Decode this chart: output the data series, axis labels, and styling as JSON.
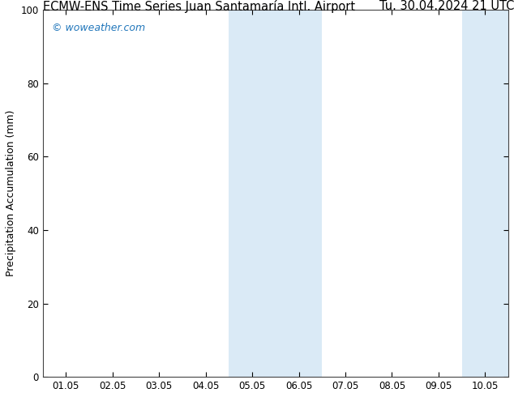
{
  "title_left": "ECMW-ENS Time Series Juan Santamaría Intl. Airport",
  "title_right": "Tu. 30.04.2024 21 UTC",
  "ylabel": "Precipitation Accumulation (mm)",
  "ylim": [
    0,
    100
  ],
  "yticks": [
    0,
    20,
    40,
    60,
    80,
    100
  ],
  "xtick_labels": [
    "01.05",
    "02.05",
    "03.05",
    "04.05",
    "05.05",
    "06.05",
    "07.05",
    "08.05",
    "09.05",
    "10.05"
  ],
  "xtick_positions": [
    0,
    1,
    2,
    3,
    4,
    5,
    6,
    7,
    8,
    9
  ],
  "xlim_min": -0.5,
  "xlim_max": 9.5,
  "shaded_bands": [
    {
      "x_start": 3.5,
      "x_end": 5.5
    },
    {
      "x_start": 8.5,
      "x_end": 9.5
    }
  ],
  "band_color": "#daeaf6",
  "watermark": "© woweather.com",
  "watermark_color": "#2277bb",
  "bg_color": "#ffffff",
  "title_fontsize": 10.5,
  "axis_label_fontsize": 9,
  "tick_fontsize": 8.5,
  "watermark_fontsize": 9
}
